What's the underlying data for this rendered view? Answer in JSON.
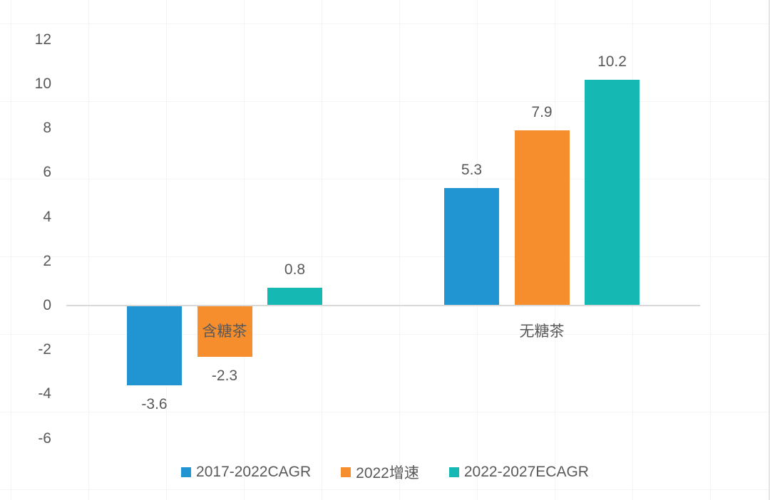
{
  "chart_data": {
    "type": "bar",
    "title": "",
    "xlabel": "",
    "ylabel": "",
    "categories": [
      "含糖茶",
      "无糖茶"
    ],
    "series": [
      {
        "name": "2017-2022CAGR",
        "color": "#2095d2",
        "values": [
          -3.6,
          5.3
        ]
      },
      {
        "name": "2022增速",
        "color": "#f78e2d",
        "values": [
          -2.3,
          7.9
        ]
      },
      {
        "name": "2022-2027ECAGR",
        "color": "#16b8b3",
        "values": [
          0.8,
          10.2
        ]
      }
    ],
    "y_ticks": [
      12,
      10,
      8,
      6,
      4,
      2,
      0,
      -2,
      -4,
      -6
    ],
    "ylim": [
      -7,
      13
    ],
    "data_labels": true,
    "legend_position": "bottom",
    "grid": "faint full-canvas square grid, horizontal value axis line at 0 only"
  },
  "colors": {
    "text": "#595959",
    "axis_line": "#d9d9d9",
    "grid": "#f4f4f4",
    "background": "#ffffff"
  }
}
